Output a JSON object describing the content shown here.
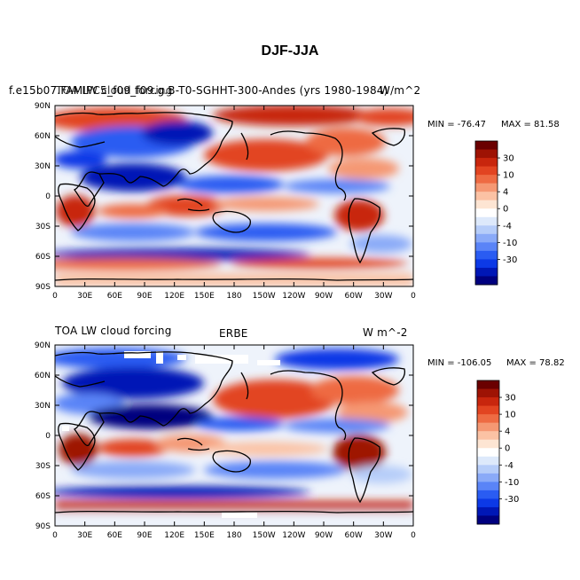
{
  "title": "DJF-JJA",
  "colors": {
    "scale": [
      "#00007f",
      "#0017b6",
      "#0c39e6",
      "#2a5cf2",
      "#5a84f7",
      "#8aaaf8",
      "#b6cdf9",
      "#dde9fb",
      "#ffffff",
      "#fde5d3",
      "#fbc2a4",
      "#f59873",
      "#ee6b43",
      "#e24421",
      "#c8260d",
      "#9e1304",
      "#6a0000"
    ],
    "land": "#000000",
    "missing": "#ffffff"
  },
  "panels": [
    {
      "id": "model",
      "overlap_left": "f.e15b07.FAMIPC5_f09_f09.g.B-T0-SGHHT-300-Andes (yrs 1980-1984)",
      "field_label": "TOA LW cloud forcing",
      "units": "W/m^2",
      "min_label": "MIN = -76.47",
      "max_label": "MAX =  81.58",
      "colorbar_labels": [
        "30",
        "10",
        "4",
        "0",
        "-4",
        "-10",
        "-30"
      ]
    },
    {
      "id": "obs",
      "field_label": "TOA LW cloud forcing",
      "center_label": "ERBE",
      "units": "W m^-2",
      "min_label": "MIN = -106.05",
      "max_label": "MAX =  78.82",
      "colorbar_labels": [
        "30",
        "10",
        "4",
        "0",
        "-4",
        "-10",
        "-30"
      ]
    }
  ],
  "axes": {
    "lat_ticks": [
      "90N",
      "60N",
      "30N",
      "0",
      "30S",
      "60S",
      "90S"
    ],
    "lon_ticks": [
      "0",
      "30E",
      "60E",
      "90E",
      "120E",
      "150E",
      "180",
      "150W",
      "120W",
      "90W",
      "60W",
      "30W",
      "0"
    ]
  }
}
